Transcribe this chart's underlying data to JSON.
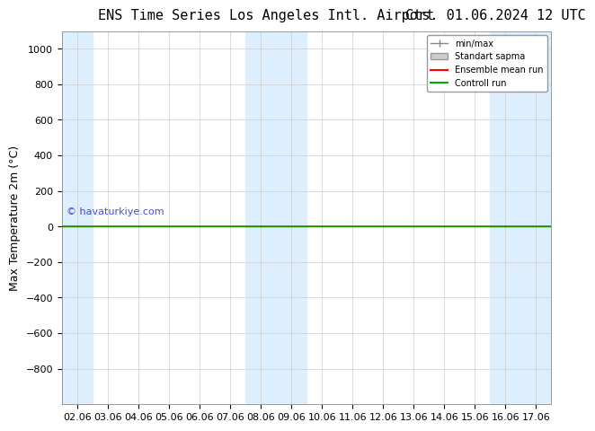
{
  "title_left": "ENS Time Series Los Angeles Intl. Airport",
  "title_right": "Cts. 01.06.2024 12 UTC",
  "ylabel": "Max Temperature 2m (°C)",
  "ylim": [
    -1000,
    1100
  ],
  "yticks": [
    -800,
    -600,
    -400,
    -200,
    0,
    200,
    400,
    600,
    800,
    1000
  ],
  "xlim_dates": [
    "02.06",
    "03.06",
    "04.06",
    "05.06",
    "06.06",
    "07.06",
    "08.06",
    "09.06",
    "10.06",
    "11.06",
    "12.06",
    "13.06",
    "14.06",
    "15.06",
    "16.06",
    "17.06"
  ],
  "shaded_cols": [
    0,
    6,
    7,
    14,
    15
  ],
  "watermark": "© havaturkiye.com",
  "legend_labels": [
    "min/max",
    "Standart sapma",
    "Ensemble mean run",
    "Controll run"
  ],
  "legend_colors": [
    "#aaaaaa",
    "#cccccc",
    "#ff0000",
    "#00aa00"
  ],
  "bg_color": "#ffffff",
  "plot_bg_color": "#ffffff",
  "shaded_color": "#ddeeff",
  "tick_label_fontsize": 8,
  "title_fontsize": 11,
  "ylabel_fontsize": 9
}
